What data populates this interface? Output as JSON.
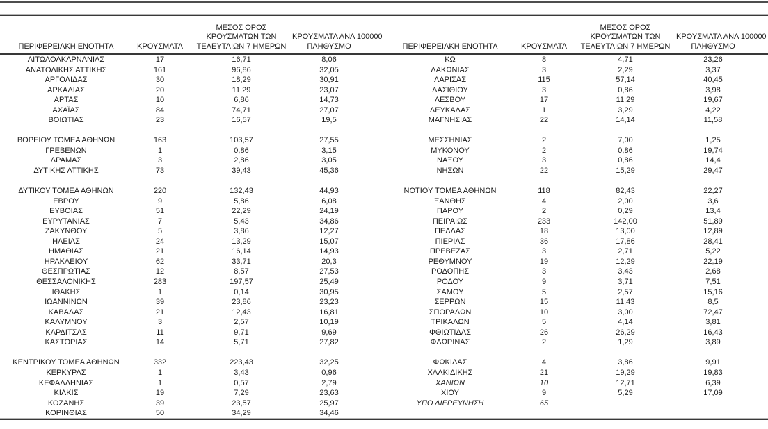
{
  "colors": {
    "text": "#1c1c1c",
    "rule": "#383838"
  },
  "columns": {
    "region": "ΠΕΡΙΦΕΡΕΙΑΚΗ ΕΝΟΤΗΤΑ",
    "cases": "ΚΡΟΥΣΜΑΤΑ",
    "avg7_lines": [
      "ΜΕΣΟΣ ΟΡΟΣ",
      "ΚΡΟΥΣΜΑΤΩΝ ΤΩΝ",
      "ΤΕΛΕΥΤΑΙΩΝ 7 ΗΜΕΡΩΝ"
    ],
    "per100k_lines": [
      "ΚΡΟΥΣΜΑΤΑ ΑΝΑ 100000",
      "ΠΛΗΘΥΣΜΟ"
    ]
  },
  "rows": [
    {
      "l": [
        "ΑΙΤΩΛΟΑΚΑΡΝΑΝΙΑΣ",
        "17",
        "16,71",
        "8,06"
      ],
      "r": [
        "ΚΩ",
        "8",
        "4,71",
        "23,26"
      ]
    },
    {
      "l": [
        "ΑΝΑΤΟΛΙΚΗΣ ΑΤΤΙΚΗΣ",
        "161",
        "96,86",
        "32,05"
      ],
      "r": [
        "ΛΑΚΩΝΙΑΣ",
        "3",
        "2,29",
        "3,37"
      ]
    },
    {
      "l": [
        "ΑΡΓΟΛΙΔΑΣ",
        "30",
        "18,29",
        "30,91"
      ],
      "r": [
        "ΛΑΡΙΣΑΣ",
        "115",
        "57,14",
        "40,45"
      ]
    },
    {
      "l": [
        "ΑΡΚΑΔΙΑΣ",
        "20",
        "11,29",
        "23,07"
      ],
      "r": [
        "ΛΑΣΙΘΙΟΥ",
        "3",
        "0,86",
        "3,98"
      ]
    },
    {
      "l": [
        "ΑΡΤΑΣ",
        "10",
        "6,86",
        "14,73"
      ],
      "r": [
        "ΛΕΣΒΟΥ",
        "17",
        "11,29",
        "19,67"
      ]
    },
    {
      "l": [
        "ΑΧΑΪΑΣ",
        "84",
        "74,71",
        "27,07"
      ],
      "r": [
        "ΛΕΥΚΑΔΑΣ",
        "1",
        "3,29",
        "4,22"
      ]
    },
    {
      "l": [
        "ΒΟΙΩΤΙΑΣ",
        "23",
        "16,57",
        "19,5"
      ],
      "r": [
        "ΜΑΓΝΗΣΙΑΣ",
        "22",
        "14,14",
        "11,58"
      ]
    },
    {
      "gap": true
    },
    {
      "l": [
        "ΒΟΡΕΙΟΥ ΤΟΜΕΑ ΑΘΗΝΩΝ",
        "163",
        "103,57",
        "27,55"
      ],
      "r": [
        "ΜΕΣΣΗΝΙΑΣ",
        "2",
        "7,00",
        "1,25"
      ]
    },
    {
      "l": [
        "ΓΡΕΒΕΝΩΝ",
        "1",
        "0,86",
        "3,15"
      ],
      "r": [
        "ΜΥΚΟΝΟΥ",
        "2",
        "0,86",
        "19,74"
      ]
    },
    {
      "l": [
        "ΔΡΑΜΑΣ",
        "3",
        "2,86",
        "3,05"
      ],
      "r": [
        "ΝΑΞΟΥ",
        "3",
        "0,86",
        "14,4"
      ]
    },
    {
      "l": [
        "ΔΥΤΙΚΗΣ ΑΤΤΙΚΗΣ",
        "73",
        "39,43",
        "45,36"
      ],
      "r": [
        "ΝΗΣΩΝ",
        "22",
        "15,29",
        "29,47"
      ]
    },
    {
      "gap": true
    },
    {
      "l": [
        "ΔΥΤΙΚΟΥ ΤΟΜΕΑ ΑΘΗΝΩΝ",
        "220",
        "132,43",
        "44,93"
      ],
      "r": [
        "ΝΟΤΙΟΥ ΤΟΜΕΑ ΑΘΗΝΩΝ",
        "118",
        "82,43",
        "22,27"
      ]
    },
    {
      "l": [
        "ΕΒΡΟΥ",
        "9",
        "5,86",
        "6,08"
      ],
      "r": [
        "ΞΑΝΘΗΣ",
        "4",
        "2,00",
        "3,6"
      ]
    },
    {
      "l": [
        "ΕΥΒΟΙΑΣ",
        "51",
        "22,29",
        "24,19"
      ],
      "r": [
        "ΠΑΡΟΥ",
        "2",
        "0,29",
        "13,4"
      ]
    },
    {
      "l": [
        "ΕΥΡΥΤΑΝΙΑΣ",
        "7",
        "5,43",
        "34,86"
      ],
      "r": [
        "ΠΕΙΡΑΙΩΣ",
        "233",
        "142,00",
        "51,89"
      ]
    },
    {
      "l": [
        "ΖΑΚΥΝΘΟΥ",
        "5",
        "3,86",
        "12,27"
      ],
      "r": [
        "ΠΕΛΛΑΣ",
        "18",
        "13,00",
        "12,89"
      ]
    },
    {
      "l": [
        "ΗΛΕΙΑΣ",
        "24",
        "13,29",
        "15,07"
      ],
      "r": [
        "ΠΙΕΡΙΑΣ",
        "36",
        "17,86",
        "28,41"
      ]
    },
    {
      "l": [
        "ΗΜΑΘΙΑΣ",
        "21",
        "16,14",
        "14,93"
      ],
      "r": [
        "ΠΡΕΒΕΖΑΣ",
        "3",
        "2,71",
        "5,22"
      ]
    },
    {
      "l": [
        "ΗΡΑΚΛΕΙΟΥ",
        "62",
        "33,71",
        "20,3"
      ],
      "r": [
        "ΡΕΘΥΜΝΟΥ",
        "19",
        "12,29",
        "22,19"
      ]
    },
    {
      "l": [
        "ΘΕΣΠΡΩΤΙΑΣ",
        "12",
        "8,57",
        "27,53"
      ],
      "r": [
        "ΡΟΔΟΠΗΣ",
        "3",
        "3,43",
        "2,68"
      ]
    },
    {
      "l": [
        "ΘΕΣΣΑΛΟΝΙΚΗΣ",
        "283",
        "197,57",
        "25,49"
      ],
      "r": [
        "ΡΟΔΟΥ",
        "9",
        "3,71",
        "7,51"
      ]
    },
    {
      "l": [
        "ΙΘΑΚΗΣ",
        "1",
        "0,14",
        "30,95"
      ],
      "r": [
        "ΣΑΜΟΥ",
        "5",
        "2,57",
        "15,16"
      ]
    },
    {
      "l": [
        "ΙΩΑΝΝΙΝΩΝ",
        "39",
        "23,86",
        "23,23"
      ],
      "r": [
        "ΣΕΡΡΩΝ",
        "15",
        "11,43",
        "8,5"
      ]
    },
    {
      "l": [
        "ΚΑΒΑΛΑΣ",
        "21",
        "12,43",
        "16,81"
      ],
      "r": [
        "ΣΠΟΡΑΔΩΝ",
        "10",
        "3,00",
        "72,47"
      ]
    },
    {
      "l": [
        "ΚΑΛΥΜΝΟΥ",
        "3",
        "2,57",
        "10,19"
      ],
      "r": [
        "ΤΡΙΚΑΛΩΝ",
        "5",
        "4,14",
        "3,81"
      ]
    },
    {
      "l": [
        "ΚΑΡΔΙΤΣΑΣ",
        "11",
        "9,71",
        "9,69"
      ],
      "r": [
        "ΦΘΙΩΤΙΔΑΣ",
        "26",
        "26,29",
        "16,43"
      ]
    },
    {
      "l": [
        "ΚΑΣΤΟΡΙΑΣ",
        "14",
        "5,71",
        "27,82"
      ],
      "r": [
        "ΦΛΩΡΙΝΑΣ",
        "2",
        "1,29",
        "3,89"
      ]
    },
    {
      "gap": true
    },
    {
      "l": [
        "ΚΕΝΤΡΙΚΟΥ ΤΟΜΕΑ ΑΘΗΝΩΝ",
        "332",
        "223,43",
        "32,25"
      ],
      "r": [
        "ΦΩΚΙΔΑΣ",
        "4",
        "3,86",
        "9,91"
      ]
    },
    {
      "l": [
        "ΚΕΡΚΥΡΑΣ",
        "1",
        "3,43",
        "0,96"
      ],
      "r": [
        "ΧΑΛΚΙΔΙΚΗΣ",
        "21",
        "19,29",
        "19,83"
      ]
    },
    {
      "l": [
        "ΚΕΦΑΛΛΗΝΙΑΣ",
        "1",
        "0,57",
        "2,79"
      ],
      "r": [
        "ΧΑΝΙΩΝ",
        "10",
        "12,71",
        "6,39"
      ],
      "r_italic": true
    },
    {
      "l": [
        "ΚΙΛΚΙΣ",
        "19",
        "7,29",
        "23,63"
      ],
      "r": [
        "ΧΙΟΥ",
        "9",
        "5,29",
        "17,09"
      ]
    },
    {
      "l": [
        "ΚΟΖΑΝΗΣ",
        "39",
        "23,57",
        "25,97"
      ],
      "r": [
        "ΥΠΟ ΔΙΕΡΕΥΝΗΣΗ",
        "65",
        "",
        ""
      ],
      "r_italic": true
    },
    {
      "l": [
        "ΚΟΡΙΝΘΙΑΣ",
        "50",
        "34,29",
        "34,46"
      ],
      "r": null
    }
  ]
}
